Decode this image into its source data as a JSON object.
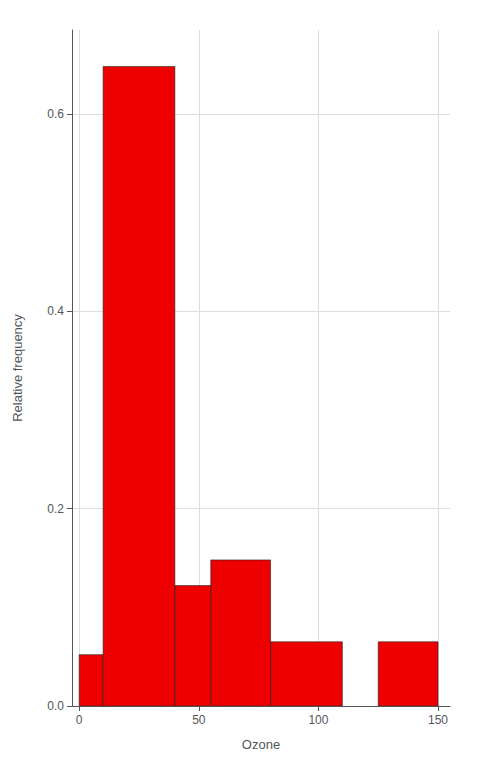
{
  "chart_data": {
    "type": "histogram",
    "xlabel": "Ozone",
    "ylabel": "Relative frequency",
    "bins": [
      0,
      10,
      40,
      55,
      80,
      110,
      125,
      150
    ],
    "values": [
      0.052,
      0.648,
      0.122,
      0.148,
      0.065,
      0.0,
      0.065
    ],
    "color": "#EE0000",
    "xlim": [
      -3,
      155
    ],
    "ylim": [
      0,
      0.685
    ],
    "xticks": [
      0,
      50,
      100,
      150
    ],
    "yticks": [
      {
        "value": 0,
        "label": "0.0"
      },
      0.2,
      0.4,
      0.6
    ],
    "grid": true
  }
}
